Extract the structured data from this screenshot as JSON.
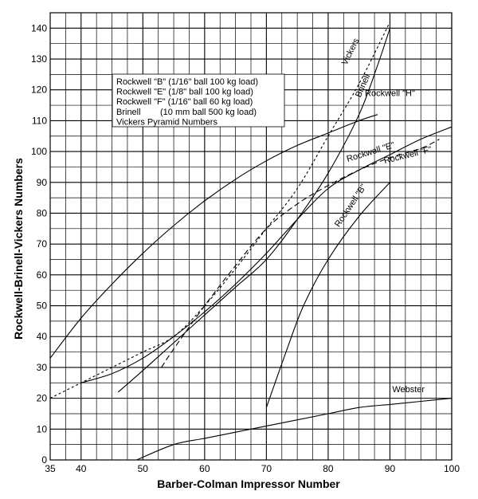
{
  "chart_data": {
    "type": "line",
    "title": "",
    "xlabel": "Barber-Colman Impressor Number",
    "ylabel": "Rockwell-Brinell-Vickers Numbers",
    "xlim": [
      35,
      100
    ],
    "ylim": [
      0,
      145
    ],
    "grid": true,
    "x_ticks": [
      35,
      40,
      50,
      60,
      70,
      80,
      90,
      100
    ],
    "y_ticks": [
      0,
      10,
      20,
      30,
      40,
      50,
      60,
      70,
      80,
      90,
      100,
      110,
      120,
      130,
      140
    ],
    "legend": {
      "placement": "top-left",
      "entries": [
        "Rockwell \"B\" (1/16\" ball 100 kg load)",
        "Rockwell \"E\" (1/8\" ball 100 kg load)",
        "Rockwell \"F\" (1/16\" ball 60 kg load)",
        "Brinell        (10 mm ball 500 kg load)",
        "Vickers Pyramid Numbers"
      ]
    },
    "series": [
      {
        "name": "Rockwell \"H\"",
        "style": "solid",
        "x": [
          35,
          40,
          45,
          50,
          55,
          60,
          65,
          70,
          75,
          80,
          85,
          88
        ],
        "y": [
          33,
          46,
          57,
          67,
          76,
          84,
          91,
          97,
          102,
          106,
          110,
          112
        ]
      },
      {
        "name": "Rockwell \"E\"",
        "style": "solid",
        "x": [
          40,
          45,
          50,
          55,
          60,
          65,
          70,
          75,
          80,
          85,
          90,
          95,
          100
        ],
        "y": [
          25,
          28,
          33,
          40,
          48,
          57,
          67,
          78,
          88,
          94,
          99,
          104,
          108
        ]
      },
      {
        "name": "Rockwell \"F\"",
        "style": "dashed",
        "x": [
          53,
          55,
          60,
          65,
          70,
          75,
          80,
          85,
          90,
          95,
          98
        ],
        "y": [
          30,
          36,
          50,
          63,
          75,
          83,
          89,
          94,
          98,
          101,
          104
        ]
      },
      {
        "name": "Rockwell \"B\"",
        "style": "solid",
        "x": [
          70,
          73,
          76,
          80,
          85,
          90
        ],
        "y": [
          17,
          34,
          50,
          65,
          79,
          90
        ]
      },
      {
        "name": "Brinell",
        "style": "solid",
        "x": [
          46,
          50,
          55,
          60,
          65,
          70,
          75,
          80,
          85,
          88,
          90
        ],
        "y": [
          22,
          29,
          38,
          47,
          56,
          65,
          78,
          93,
          112,
          128,
          140
        ]
      },
      {
        "name": "Vickers",
        "style": "dotted",
        "x": [
          35,
          40,
          45,
          50,
          55,
          60,
          65,
          70,
          75,
          80,
          85,
          90
        ],
        "y": [
          20,
          25,
          30,
          35,
          40,
          50,
          62,
          75,
          88,
          105,
          122,
          142
        ]
      },
      {
        "name": "Webster",
        "style": "solid",
        "x": [
          49,
          55,
          60,
          65,
          70,
          75,
          80,
          85,
          90,
          95,
          100
        ],
        "y": [
          0,
          5,
          7,
          9,
          11,
          13,
          15,
          17,
          18,
          19,
          20
        ]
      }
    ]
  }
}
